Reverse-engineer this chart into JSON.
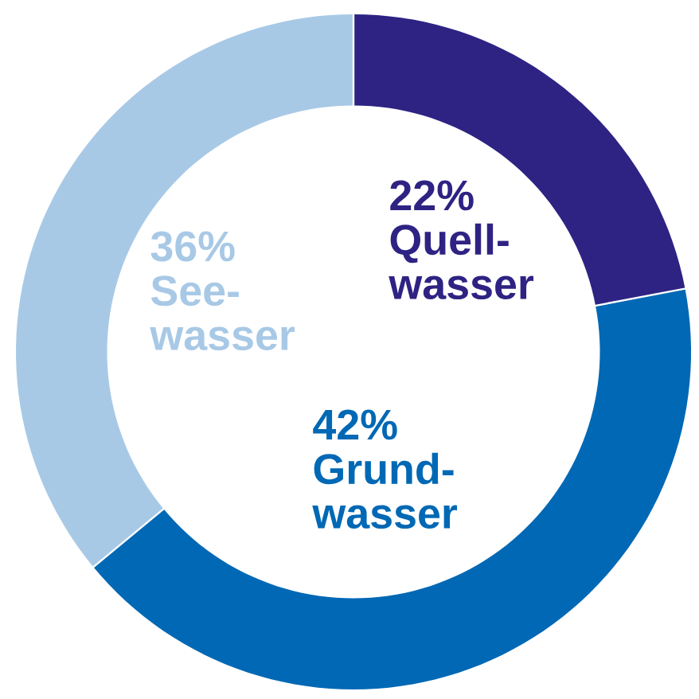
{
  "chart_data": {
    "type": "donut",
    "categories": [
      "Quell-wasser",
      "Grund-wasser",
      "See-wasser"
    ],
    "values": [
      22,
      42,
      36
    ],
    "value_labels": [
      "22%",
      "42%",
      "36%"
    ],
    "colors": [
      "#2e2383",
      "#0068b4",
      "#a8c9e6"
    ]
  }
}
